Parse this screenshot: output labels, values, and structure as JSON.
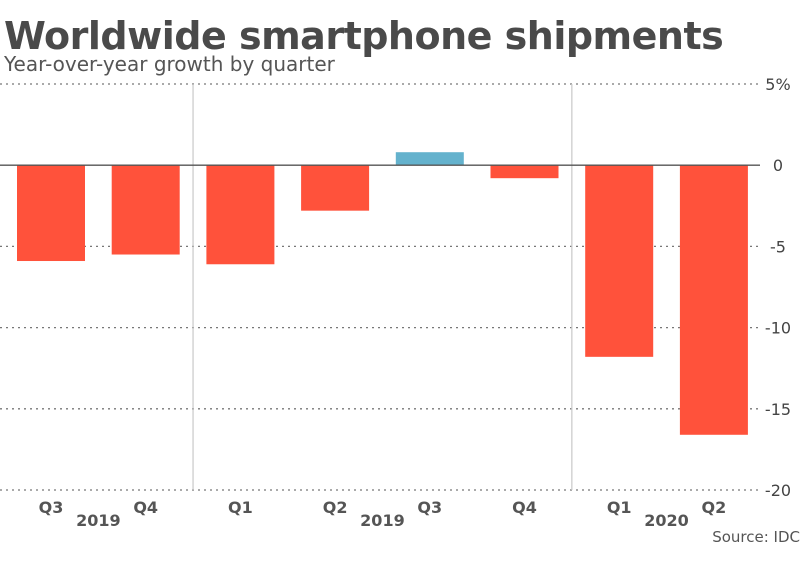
{
  "chart_data": {
    "type": "bar",
    "title": "Worldwide smartphone shipments",
    "subtitle": "Year-over-year growth by quarter",
    "source": "Source: IDC",
    "categories": [
      "Q3",
      "Q4",
      "Q1",
      "Q2",
      "Q3",
      "Q4",
      "Q1",
      "Q2"
    ],
    "year_labels": [
      {
        "label": "2019",
        "between": [
          0,
          1
        ]
      },
      {
        "label": "2019",
        "between": [
          3,
          4
        ]
      },
      {
        "label": "2020",
        "between": [
          6,
          7
        ]
      }
    ],
    "values": [
      -5.9,
      -5.5,
      -6.1,
      -2.8,
      0.8,
      -0.8,
      -11.8,
      -16.6
    ],
    "ylim": [
      -20,
      5
    ],
    "yticks": [
      5,
      0,
      -5,
      -10,
      -15,
      -20
    ],
    "ytick_labels": [
      "5%",
      "0",
      "-5",
      "-10",
      "-15",
      "-20"
    ],
    "grid": true,
    "colors": {
      "negative": "#ff523b",
      "positive": "#64b2cd",
      "text": "#4a4a4a",
      "grid": "#777777"
    },
    "year_separators_after": [
      1,
      5
    ]
  }
}
